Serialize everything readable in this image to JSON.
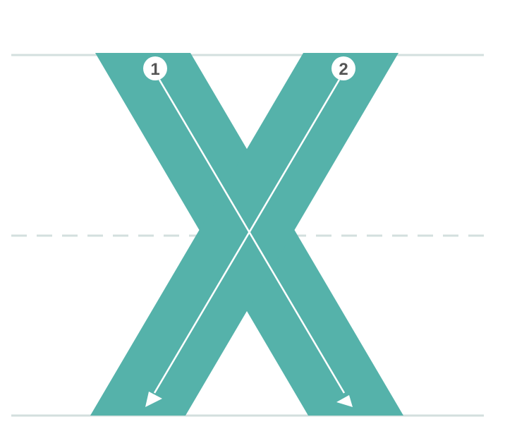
{
  "colors": {
    "background": "#ffffff",
    "letter_fill": "#55b2aa",
    "guide_line": "#d3dfde",
    "arrow": "#ffffff",
    "badge_fill": "#ffffff",
    "badge_text": "#555555"
  },
  "strokes": [
    {
      "label": "1"
    },
    {
      "label": "2"
    }
  ]
}
